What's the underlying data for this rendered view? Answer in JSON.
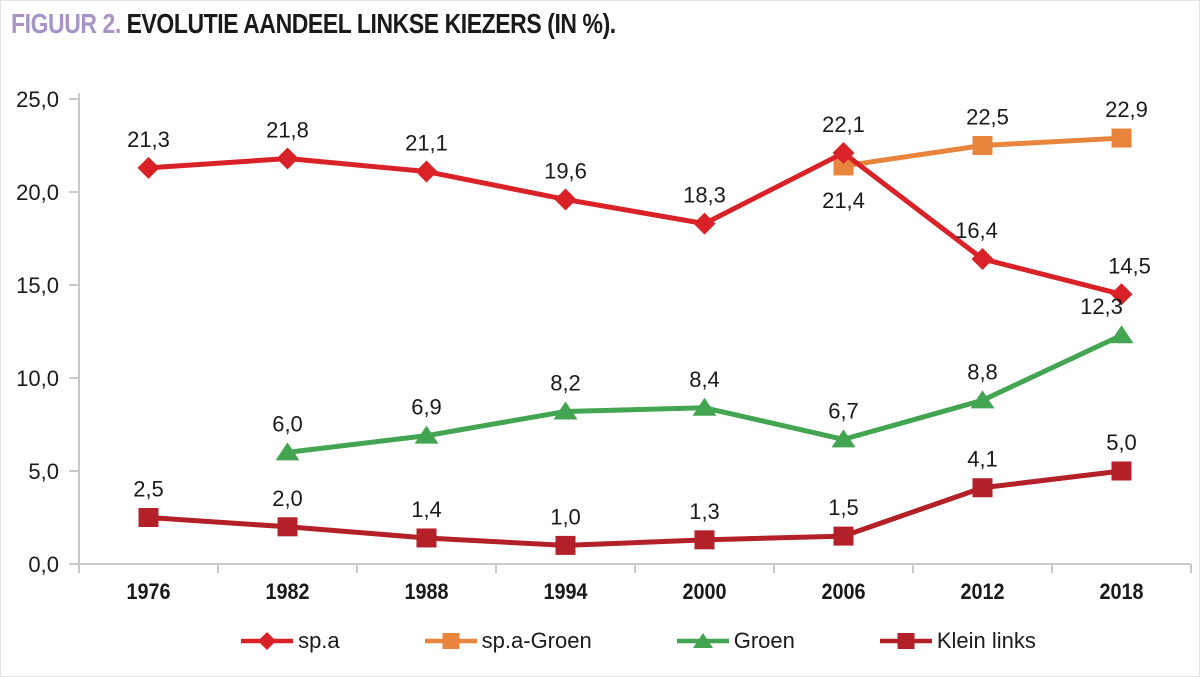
{
  "page": {
    "title_prefix": "FIGUUR 2.",
    "title_text": "EVOLUTIE AANDEEL LINKSE KIEZERS (IN %)."
  },
  "colors": {
    "title_accent": "#a793c6",
    "text": "#1a1a1a",
    "axis": "#c9c9c9",
    "spa_red": "#d92228",
    "spa_groen_orange": "#e8843c",
    "groen_green": "#43a551",
    "klein_links_darkred": "#b32027"
  },
  "chart_data": {
    "type": "line",
    "title": "FIGUUR 2. EVOLUTIE AANDEEL LINKSE KIEZERS (IN %).",
    "xlabel": "",
    "ylabel": "",
    "categories": [
      "1976",
      "1982",
      "1988",
      "1994",
      "2000",
      "2006",
      "2012",
      "2018"
    ],
    "ylim": [
      0,
      25
    ],
    "y_tick_values": [
      0,
      5,
      10,
      15,
      20,
      25
    ],
    "y_tick_labels": [
      "0,0",
      "5,0",
      "10,0",
      "15,0",
      "20,0",
      "25,0"
    ],
    "grid": false,
    "legend_position": "bottom",
    "series": [
      {
        "name": "sp.a",
        "color": "#d92228",
        "marker": "diamond",
        "z": 4,
        "values": [
          21.3,
          21.8,
          21.1,
          19.6,
          18.3,
          22.1,
          16.4,
          14.5
        ],
        "labels": [
          "21,3",
          "21,8",
          "21,1",
          "19,6",
          "18,3",
          "22,1",
          "16,4",
          "14,5"
        ],
        "label_side": [
          "above",
          "above",
          "above",
          "above",
          "above",
          "above",
          "above",
          "above"
        ],
        "label_dx": [
          0,
          0,
          0,
          0,
          0,
          0,
          -6,
          8
        ]
      },
      {
        "name": "sp.a-Groen",
        "color": "#e8843c",
        "marker": "square",
        "z": 1,
        "values": [
          null,
          null,
          null,
          null,
          null,
          21.4,
          22.5,
          22.9
        ],
        "labels": [
          null,
          null,
          null,
          null,
          null,
          "21,4",
          "22,5",
          "22,9"
        ],
        "label_side": [
          null,
          null,
          null,
          null,
          null,
          "below",
          "above",
          "above"
        ],
        "label_dx": [
          0,
          0,
          0,
          0,
          0,
          0,
          5,
          5
        ]
      },
      {
        "name": "Groen",
        "color": "#43a551",
        "marker": "triangle",
        "z": 2,
        "values": [
          null,
          6.0,
          6.9,
          8.2,
          8.4,
          6.7,
          8.8,
          12.3
        ],
        "labels": [
          null,
          "6,0",
          "6,9",
          "8,2",
          "8,4",
          "6,7",
          "8,8",
          "12,3"
        ],
        "label_side": [
          null,
          "above",
          "above",
          "above",
          "above",
          "above",
          "above",
          "above"
        ],
        "label_dx": [
          0,
          0,
          0,
          0,
          0,
          0,
          0,
          -20
        ]
      },
      {
        "name": "Klein links",
        "color": "#b32027",
        "marker": "square",
        "z": 3,
        "values": [
          2.5,
          2.0,
          1.4,
          1.0,
          1.3,
          1.5,
          4.1,
          5.0
        ],
        "labels": [
          "2,5",
          "2,0",
          "1,4",
          "1,0",
          "1,3",
          "1,5",
          "4,1",
          "5,0"
        ],
        "label_side": [
          "above",
          "above",
          "above",
          "above",
          "above",
          "above",
          "above",
          "above"
        ],
        "label_dx": [
          0,
          0,
          0,
          0,
          0,
          0,
          0,
          0
        ]
      }
    ],
    "legend": [
      {
        "label": "sp.a",
        "marker": "diamond",
        "color": "#d92228"
      },
      {
        "label": "sp.a-Groen",
        "marker": "square",
        "color": "#e8843c"
      },
      {
        "label": "Groen",
        "marker": "triangle",
        "color": "#43a551"
      },
      {
        "label": "Klein links",
        "marker": "square",
        "color": "#b32027"
      }
    ]
  }
}
